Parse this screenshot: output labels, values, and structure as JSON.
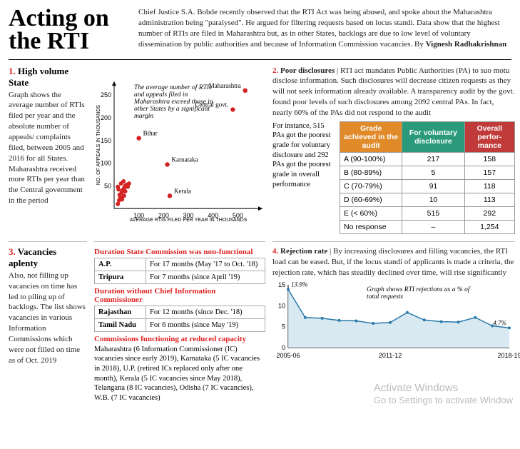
{
  "header": {
    "title": "Acting on the RTI",
    "intro": "Chief Justice S.A. Bobde recently observed that the RTI Act was being abused, and spoke about the Maharashtra administration being \"paralysed\". He argued for filtering requests based on locus standi. Data show that the highest number of RTIs are filed in Maharashtra but, as in other States, backlogs are due to low level of voluntary dissemination by public authorities and because of Information Commission vacancies. By ",
    "byline": "Vignesh Radhakrishnan"
  },
  "sec1": {
    "heading_num": "1.",
    "heading": "High volume State",
    "blurb": "Graph shows the average number of RTIs filed per year and the absolute number of appeals/ complaints filed, between 2005 and 2016 for all States. Maharashtra received more RTIs per year than the Central government in the period",
    "scatter": {
      "xlim": [
        0,
        600
      ],
      "ylim": [
        0,
        280
      ],
      "xticks": [
        100,
        200,
        300,
        400,
        500
      ],
      "yticks": [
        50,
        100,
        150,
        200,
        250
      ],
      "xaxis_label": "AVERAGE RTIS FILED PER YEAR IN THOUSANDS",
      "yaxis_label": "NO. OF APPEALS IN THOUSANDS",
      "point_color": "#d22222",
      "annotation": "The average number of RTIs and appeals filed in Maharashtra exceed those in other States by a significant margin",
      "labeled_points": [
        {
          "label": "Maharashtra",
          "x": 530,
          "y": 260
        },
        {
          "label": "Central govt.",
          "x": 480,
          "y": 218
        },
        {
          "label": "Bihar",
          "x": 100,
          "y": 155
        },
        {
          "label": "Karnataka",
          "x": 215,
          "y": 97
        },
        {
          "label": "Kerala",
          "x": 225,
          "y": 28
        }
      ],
      "other_points": [
        {
          "x": 15,
          "y": 10
        },
        {
          "x": 20,
          "y": 18
        },
        {
          "x": 25,
          "y": 25
        },
        {
          "x": 30,
          "y": 35
        },
        {
          "x": 35,
          "y": 40
        },
        {
          "x": 40,
          "y": 45
        },
        {
          "x": 45,
          "y": 50
        },
        {
          "x": 50,
          "y": 52
        },
        {
          "x": 28,
          "y": 55
        },
        {
          "x": 38,
          "y": 60
        },
        {
          "x": 22,
          "y": 30
        },
        {
          "x": 55,
          "y": 48
        },
        {
          "x": 18,
          "y": 42
        },
        {
          "x": 45,
          "y": 38
        },
        {
          "x": 32,
          "y": 20
        },
        {
          "x": 60,
          "y": 55
        },
        {
          "x": 15,
          "y": 48
        },
        {
          "x": 40,
          "y": 28
        }
      ]
    }
  },
  "sec2": {
    "heading_num": "2.",
    "heading": "Poor disclosures",
    "tail": " | RTI act mandates Public Authorities (PA) to suo motu disclose information. Such disclosures will decrease citizen requests as they will not seek information already available. A transparency audit by the govt. found poor levels of such disclosures among 2092 central PAs. In fact, nearly 60% of the PAs did not respond to the audit",
    "side_note": "For instance, 515 PAs got the poorest grade for voluntary disclosure and 292 PAs got the poorest grade in overall performance",
    "table": {
      "headers": [
        "Grade achieved in the audit",
        "For voluntary disclosure",
        "Overall perfor-mance"
      ],
      "header_colors": [
        "#e08a2a",
        "#2a9a7a",
        "#c03a3a"
      ],
      "rows": [
        [
          "A (90-100%)",
          "217",
          "158"
        ],
        [
          "B (80-89%)",
          "5",
          "157"
        ],
        [
          "C (70-79%)",
          "91",
          "118"
        ],
        [
          "D (60-69%)",
          "10",
          "113"
        ],
        [
          "E (< 60%)",
          "515",
          "292"
        ],
        [
          "No response",
          "–",
          "1,254"
        ]
      ]
    }
  },
  "sec3": {
    "heading_num": "3.",
    "heading": "Vacancies aplenty",
    "blurb": "Also, not filling up vacancies on time has led to piling up of backlogs. The list shows vacancies in various Information Commissions which were not filled on time as of Oct. 2019",
    "t1_title": "Duration State Commission was non-functional",
    "t1_rows": [
      [
        "A.P.",
        "For 17 months (May '17 to Oct. '18)"
      ],
      [
        "Tripura",
        "For 7 months (since April '19)"
      ]
    ],
    "t2_title": "Duration without Chief Information Commissioner",
    "t2_rows": [
      [
        "Rajasthan",
        "For 12 months (since Dec. '18)"
      ],
      [
        "Tamil Nadu",
        "For 6 months (since May '19)"
      ]
    ],
    "t3_title": "Commissions functioning at reduced capacity",
    "t3_body": "Maharashtra (6 Information Commissioner (IC) vacancies since early 2019), Karnataka (5 IC vacancies in 2018), U.P. (retired ICs replaced only after one month), Kerala (5 IC vacancies since May 2018), Telangana (8 IC vacancies), Odisha (7 IC vacancies), W.B. (7 IC vacancies)"
  },
  "sec4": {
    "heading_num": "4.",
    "heading": "Rejection rate",
    "tail": " | By increasing disclosures and filling vacancies, the RTI load can be eased. But, if the locus standi of applicants is made a criteria, the rejection rate, which has steadily declined over time, will rise significantly",
    "chart": {
      "xlabels": [
        "2005-06",
        "2011-12",
        "2018-19"
      ],
      "yticks": [
        0,
        5,
        10,
        15
      ],
      "line_color": "#2a7aaa",
      "fill_color": "#cfe3ef",
      "annotation": "Graph shows RTI rejections as a % of total requests",
      "first_label": "13.9%",
      "last_label": "4.7%",
      "points": [
        13.9,
        7.2,
        7.0,
        6.5,
        6.4,
        5.8,
        6.0,
        8.4,
        6.6,
        6.2,
        6.1,
        7.2,
        5.2,
        4.7
      ]
    }
  },
  "watermark": {
    "line1": "Activate Windows",
    "line2": "Go to Settings to activate Window"
  }
}
